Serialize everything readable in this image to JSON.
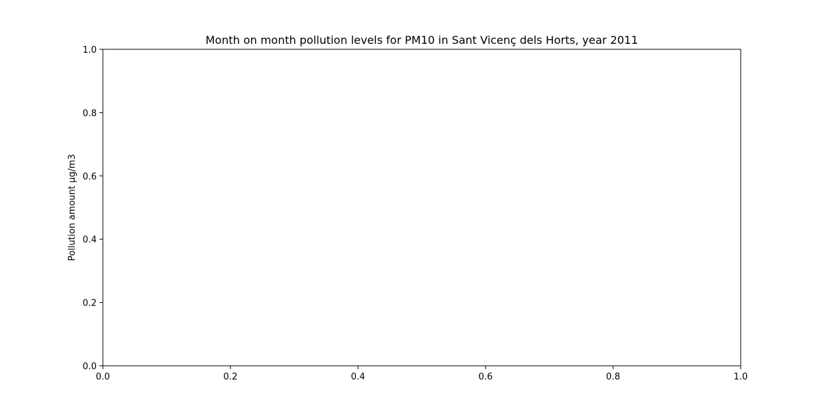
{
  "chart_data": {
    "type": "line",
    "title": "Month on month pollution levels for PM10 in Sant Vicenç dels Horts, year 2011",
    "xlabel": "",
    "ylabel": "Pollution amount µg/m3",
    "xlim": [
      0.0,
      1.0
    ],
    "ylim": [
      0.0,
      1.0
    ],
    "x_ticks": [
      "0.0",
      "0.2",
      "0.4",
      "0.6",
      "0.8",
      "1.0"
    ],
    "y_ticks": [
      "0.0",
      "0.2",
      "0.4",
      "0.6",
      "0.8",
      "1.0"
    ],
    "series": [],
    "grid": false,
    "colors": {
      "axes": "#000000",
      "background": "#ffffff"
    }
  }
}
